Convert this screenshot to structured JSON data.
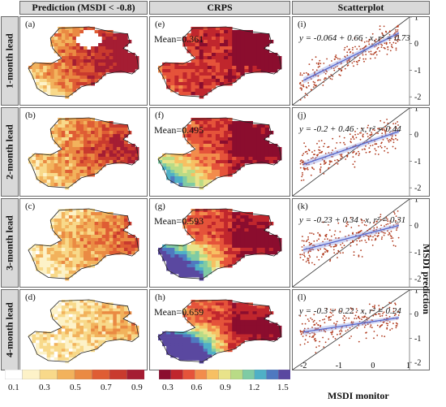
{
  "headers": {
    "col1": "Prediction (MSDI < -0.8)",
    "col2": "CRPS",
    "col3": "Scatterplot"
  },
  "row_labels": [
    "1-month lead",
    "2-month lead",
    "3-month lead",
    "4-month lead"
  ],
  "panel_labels": {
    "prediction": [
      "(a)",
      "(b)",
      "(c)",
      "(d)"
    ],
    "crps": [
      "(e)",
      "(f)",
      "(g)",
      "(h)"
    ],
    "scatter": [
      "(i)",
      "(j)",
      "(k)",
      "(l)"
    ]
  },
  "crps_means": [
    "Mean=0.361",
    "Mean=0.495",
    "Mean=0.593",
    "Mean=0.659"
  ],
  "equations": [
    "y = -0.064 + 0.66 · x,  r² = 0.73",
    "y = -0.2 + 0.46 · x,  r² = 0.44",
    "y = -0.23 + 0.34 · x,  r² = 0.31",
    "y = -0.3 + 0.22 · x,  r² = 0.24"
  ],
  "colorbar_prediction": {
    "ticks": [
      "0.1",
      "0.3",
      "0.5",
      "0.7",
      "0.9"
    ],
    "colors": [
      "#ffffff",
      "#fdf2c8",
      "#f8d98a",
      "#f2b25c",
      "#ea8a43",
      "#df5d34",
      "#c93a2e",
      "#a51d33"
    ]
  },
  "colorbar_crps": {
    "ticks": [
      "0.3",
      "0.6",
      "0.9",
      "1.2",
      "1.5"
    ],
    "colors": [
      "#8b0d2e",
      "#c0262d",
      "#e5533a",
      "#f28c4c",
      "#f7c063",
      "#e9e38a",
      "#b9db86",
      "#7fcba4",
      "#4fb0c6",
      "#4f79c0",
      "#5a48a0"
    ]
  },
  "axis": {
    "x_title": "MSDI monitor",
    "y_title": "MSDI prediction",
    "x_ticks": [
      "-2",
      "-1",
      "0",
      "1"
    ],
    "y_ticks": [
      "1",
      "0",
      "-1",
      "-2"
    ]
  },
  "chart_data": {
    "type": "scatter",
    "x_range": [
      -2.3,
      1.0
    ],
    "y_range": [
      -2.3,
      1.0
    ],
    "reference_line": "1:1",
    "series": [
      {
        "name": "1-month lead",
        "intercept": -0.064,
        "slope": 0.66,
        "r2": 0.73
      },
      {
        "name": "2-month lead",
        "intercept": -0.2,
        "slope": 0.46,
        "r2": 0.44
      },
      {
        "name": "3-month lead",
        "intercept": -0.23,
        "slope": 0.34,
        "r2": 0.31
      },
      {
        "name": "4-month lead",
        "intercept": -0.3,
        "slope": 0.22,
        "r2": 0.24
      }
    ]
  }
}
